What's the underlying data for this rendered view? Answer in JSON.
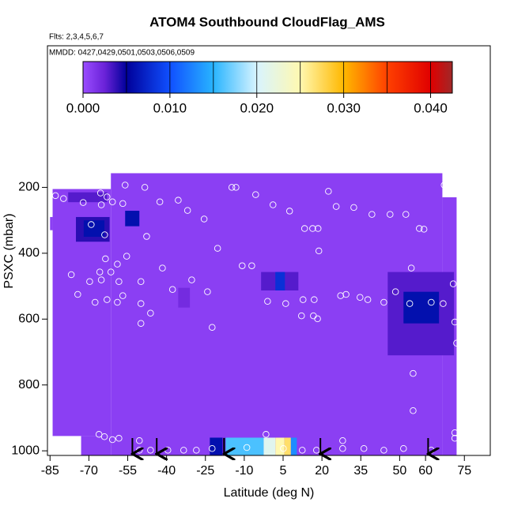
{
  "chart_data": {
    "type": "curtain",
    "title": "ATOM4 Southbound CloudFlag_AMS",
    "flights_note": "Flts: 2,3,4,5,6,7",
    "dates_note": "MMDD: 0427,0429,0501,0503,0506,0509",
    "x_label": "Latitude (deg N)",
    "y_label": "PSXC (mbar)",
    "xlim": [
      -86,
      85
    ],
    "ylim": [
      1014,
      -230
    ],
    "xticks": [
      -85,
      -70,
      -55,
      -40,
      -25,
      -10,
      5,
      20,
      35,
      50,
      60,
      75
    ],
    "yticks": [
      200,
      400,
      600,
      800,
      1000
    ],
    "clim": [
      0,
      0.0425
    ],
    "colorbar_ticks": [
      {
        "value": 0,
        "label": "0.000"
      },
      {
        "value": 0.01,
        "label": "0.010"
      },
      {
        "value": 0.02,
        "label": "0.020"
      },
      {
        "value": 0.03,
        "label": "0.030"
      },
      {
        "value": 0.04,
        "label": "0.040"
      }
    ],
    "colorbar_lines": [
      0.005,
      0.01,
      0.015,
      0.02,
      0.025,
      0.03,
      0.035,
      0.04
    ],
    "colormap": [
      {
        "value": 0,
        "color": "#9a4dff"
      },
      {
        "value": 0.0025,
        "color": "#6a22d8"
      },
      {
        "value": 0.005,
        "color": "#00009a"
      },
      {
        "value": 0.01,
        "color": "#1050ff"
      },
      {
        "value": 0.015,
        "color": "#28b4ff"
      },
      {
        "value": 0.02,
        "color": "#d8f4ff"
      },
      {
        "value": 0.025,
        "color": "#fff8b0"
      },
      {
        "value": 0.03,
        "color": "#ffb800"
      },
      {
        "value": 0.035,
        "color": "#ff4000"
      },
      {
        "value": 0.04,
        "color": "#e00000"
      },
      {
        "value": 0.0425,
        "color": "#a02828"
      }
    ],
    "cells": [
      {
        "lat": [
          -61.5,
          66.5
        ],
        "p": [
          157,
          1014
        ],
        "value": 0.0008
      },
      {
        "lat": [
          -84,
          -61.5
        ],
        "p": [
          205,
          955
        ],
        "value": 0.0008
      },
      {
        "lat": [
          -85,
          -84
        ],
        "p": [
          290,
          330
        ],
        "value": 0.0008
      },
      {
        "lat": [
          -73,
          -61.5
        ],
        "p": [
          955,
          1014
        ],
        "value": 0.0008
      },
      {
        "lat": [
          66.5,
          72
        ],
        "p": [
          230,
          1014
        ],
        "value": 0.0008
      },
      {
        "lat": [
          -78,
          -63
        ],
        "p": [
          215,
          245
        ],
        "value": 0.003
      },
      {
        "lat": [
          -75,
          -62
        ],
        "p": [
          290,
          365
        ],
        "value": 0.004
      },
      {
        "lat": [
          -72,
          -64
        ],
        "p": [
          300,
          350
        ],
        "value": 0.006
      },
      {
        "lat": [
          -56,
          -50.5
        ],
        "p": [
          271,
          318
        ],
        "value": 0.006
      },
      {
        "lat": [
          -35.5,
          -31
        ],
        "p": [
          505,
          565
        ],
        "value": 0.002
      },
      {
        "lat": [
          -3.5,
          10.9
        ],
        "p": [
          457,
          513
        ],
        "value": 0.003
      },
      {
        "lat": [
          2,
          5.7
        ],
        "p": [
          457,
          513
        ],
        "value": 0.008
      },
      {
        "lat": [
          45.4,
          71
        ],
        "p": [
          457,
          710
        ],
        "value": 0.003
      },
      {
        "lat": [
          51.5,
          65.2
        ],
        "p": [
          517,
          613
        ],
        "value": 0.006
      },
      {
        "lat": [
          -23.3,
          -18.5
        ],
        "p": [
          960,
          1014
        ],
        "value": 0.006
      },
      {
        "lat": [
          -18.5,
          -17.2
        ],
        "p": [
          960,
          1014
        ],
        "value": 0.003
      },
      {
        "lat": [
          -17.2,
          -2.5
        ],
        "p": [
          960,
          1014
        ],
        "value": 0.016
      },
      {
        "lat": [
          -2.5,
          2
        ],
        "p": [
          960,
          1014
        ],
        "value": 0.021
      },
      {
        "lat": [
          2,
          5.5
        ],
        "p": [
          960,
          1014
        ],
        "value": 0.025
      },
      {
        "lat": [
          5.5,
          8
        ],
        "p": [
          960,
          1014
        ],
        "value": 0.027
      },
      {
        "lat": [
          8,
          10.3
        ],
        "p": [
          960,
          1014
        ],
        "value": 0.013
      }
    ],
    "points": {
      "lat": [
        -82.9,
        -79.8,
        -72.2,
        -65.5,
        -65.2,
        -64.5,
        -63,
        -60.9,
        -56.9,
        -56,
        -48.4,
        -42.6,
        -47.7,
        -35.5,
        -31.9,
        -25.5,
        -69.1,
        -63.9,
        -63.6,
        -55.4,
        -59,
        -61.5,
        -65.2,
        -65.8,
        -58.4,
        -49.9,
        -41.6,
        -76.8,
        -69.7,
        -74.3,
        -67.6,
        -63,
        -59,
        -56.9,
        -49.9,
        -46.2,
        -49.9,
        -37.7,
        -30.3,
        -24.2,
        -22.4,
        -20.3,
        -14.8,
        -13.2,
        -5.6,
        1.1,
        7.5,
        13.3,
        16.4,
        18.5,
        18.8,
        22.5,
        25.5,
        32.3,
        39.3,
        46.3,
        52.4,
        57.6,
        59.4,
        67.2,
        72.7,
        54.5,
        70.7,
        66.8,
        71.3,
        72,
        55.2,
        55.2,
        -10.8,
        -7.1,
        -1,
        6,
        12.7,
        17,
        12.1,
        16.7,
        18.3,
        27.2,
        29.3,
        34.7,
        37.7,
        43.9,
        48.4,
        53.9,
        62.2,
        -74.9,
        -66.1,
        -64,
        -60.9,
        -58.4,
        -50.5,
        -50.5,
        -46.2,
        -39.5,
        -33.4,
        -28.5,
        -22.4,
        -9,
        -1.6,
        5.1,
        12.4,
        17.9,
        28,
        28,
        36.2,
        43.9,
        51.5,
        71.3,
        71.3,
        62.2
      ],
      "p": [
        225,
        234,
        246,
        217,
        253,
        186,
        229,
        244,
        249,
        193,
        200,
        244,
        349,
        239,
        270,
        296,
        313,
        344,
        417,
        409,
        433,
        457,
        481,
        457,
        486,
        486,
        445,
        465,
        486,
        525,
        549,
        541,
        549,
        529,
        553,
        582,
        613,
        510,
        481,
        517,
        625,
        385,
        200,
        200,
        222,
        253,
        272,
        325,
        325,
        325,
        393,
        212,
        258,
        261,
        282,
        282,
        282,
        325,
        327,
        193,
        205,
        445,
        493,
        553,
        609,
        673,
        765,
        878,
        438,
        438,
        546,
        553,
        541,
        541,
        590,
        590,
        599,
        529,
        525,
        534,
        541,
        549,
        517,
        553,
        549,
        974,
        950,
        957,
        966,
        962,
        969,
        998,
        998,
        998,
        998,
        998,
        993,
        990,
        950,
        993,
        998,
        998,
        969,
        993,
        993,
        998,
        993,
        945,
        962,
        998
      ]
    },
    "arrows": [
      -53.2,
      -43.8,
      -17.8,
      19.4,
      61
    ]
  }
}
